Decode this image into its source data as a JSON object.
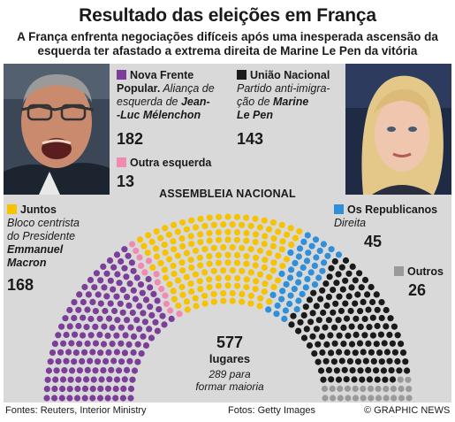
{
  "header": {
    "title": "Resultado das eleições em França",
    "subtitle_line1": "A França enfrenta negociações difíceis após uma inesperada ascensão da",
    "subtitle_line2": "esquerda ter afastado a extrema direita de Marine Le Pen da vitória"
  },
  "groups": {
    "nfp": {
      "name1": "Nova Frente",
      "name2": "Popular.",
      "desc_a": " Aliança de",
      "desc_b": "esquerda de ",
      "leader1": "Jean-",
      "leader2": "-Luc Mélenchon",
      "seats": "182",
      "color": "#7b3f99"
    },
    "un": {
      "name": "União Nacional",
      "desc1": "Partido anti-imigra-",
      "desc2": "ção de ",
      "leader1": "Marine",
      "leader2": "Le Pen",
      "seats": "143",
      "color": "#1a1a1a"
    },
    "ol": {
      "name": "Outra esquerda",
      "seats": "13",
      "color": "#f08ab0"
    },
    "juntos": {
      "name": "Juntos",
      "desc1": "Bloco centrista",
      "desc2": "do Presidente",
      "leader1": "Emmanuel",
      "leader2": "Macron",
      "seats": "168",
      "color": "#f7c300"
    },
    "lr": {
      "name": "Os Republicanos",
      "desc": "Direita",
      "seats": "45",
      "color": "#2f8fd8"
    },
    "outros": {
      "name": "Outros",
      "seats": "26",
      "color": "#9a9a9a"
    }
  },
  "assembly": {
    "label": "ASSEMBLEIA NACIONAL",
    "total": "577",
    "total_label": "lugares",
    "majority1": "289 para",
    "majority2": "formar maioria"
  },
  "footer": {
    "sources": "Fontes: Reuters, Interior Ministry",
    "photos": "Fotos: Getty Images",
    "credit": "© GRAPHIC NEWS"
  },
  "chart_data": {
    "type": "hemicycle",
    "categories": [
      "Nova Frente Popular",
      "Outra esquerda",
      "Juntos",
      "Os Republicanos",
      "União Nacional",
      "Outros"
    ],
    "values": [
      182,
      13,
      168,
      45,
      143,
      26
    ],
    "total": 577,
    "majority": 289
  }
}
